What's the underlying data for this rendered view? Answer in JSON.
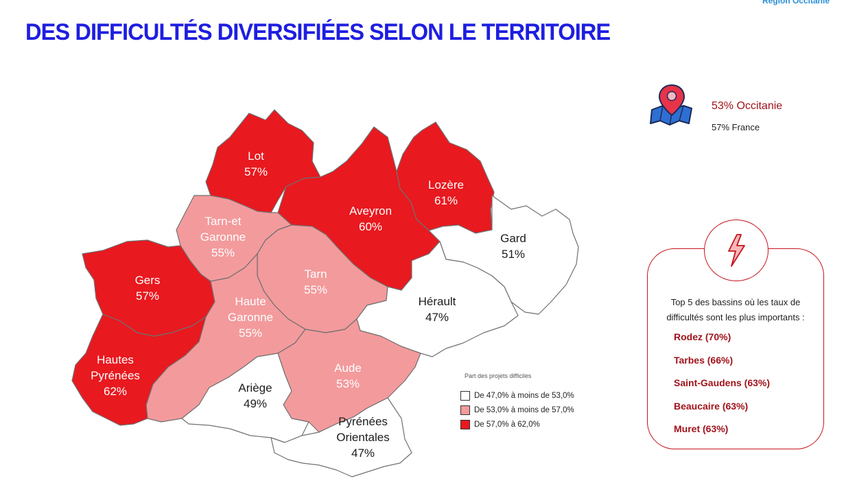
{
  "header": {
    "region_label": "Région Occitanie",
    "title": "DES DIFFICULTÉS DIVERSIFIÉES SELON LE TERRITOIRE"
  },
  "map": {
    "departments": [
      {
        "id": "lot",
        "name_lines": [
          "Lot"
        ],
        "value_label": "57%",
        "value": 57,
        "class": "high"
      },
      {
        "id": "lozere",
        "name_lines": [
          "Lozère"
        ],
        "value_label": "61%",
        "value": 61,
        "class": "high"
      },
      {
        "id": "aveyron",
        "name_lines": [
          "Aveyron"
        ],
        "value_label": "60%",
        "value": 60,
        "class": "high"
      },
      {
        "id": "gard",
        "name_lines": [
          "Gard"
        ],
        "value_label": "51%",
        "value": 51,
        "class": "low"
      },
      {
        "id": "tarn-et-garonne",
        "name_lines": [
          "Tarn-et",
          "Garonne"
        ],
        "value_label": "55%",
        "value": 55,
        "class": "mid"
      },
      {
        "id": "gers",
        "name_lines": [
          "Gers"
        ],
        "value_label": "57%",
        "value": 57,
        "class": "high"
      },
      {
        "id": "tarn",
        "name_lines": [
          "Tarn"
        ],
        "value_label": "55%",
        "value": 55,
        "class": "mid"
      },
      {
        "id": "herault",
        "name_lines": [
          "Hérault"
        ],
        "value_label": "47%",
        "value": 47,
        "class": "low"
      },
      {
        "id": "haute-garonne",
        "name_lines": [
          "Haute",
          "Garonne"
        ],
        "value_label": "55%",
        "value": 55,
        "class": "mid"
      },
      {
        "id": "hautes-pyrenees",
        "name_lines": [
          "Hautes",
          "Pyrénées"
        ],
        "value_label": "62%",
        "value": 62,
        "class": "high"
      },
      {
        "id": "aude",
        "name_lines": [
          "Aude"
        ],
        "value_label": "53%",
        "value": 53,
        "class": "mid"
      },
      {
        "id": "ariege",
        "name_lines": [
          "Ariège"
        ],
        "value_label": "49%",
        "value": 49,
        "class": "low"
      },
      {
        "id": "pyrenees-orientales",
        "name_lines": [
          "Pyrénées",
          "Orientales"
        ],
        "value_label": "47%",
        "value": 47,
        "class": "low"
      }
    ],
    "colors": {
      "high": "#e8191f",
      "mid": "#f39a9c",
      "low": "#ffffff"
    },
    "legend": {
      "title": "Part des projets difficiles",
      "items": [
        {
          "label": "De 47,0% à moins de 53,0%",
          "color": "#ffffff"
        },
        {
          "label": "De 53,0% à moins de 57,0%",
          "color": "#f39a9c"
        },
        {
          "label": "De 57,0% à 62,0%",
          "color": "#e8191f"
        }
      ]
    }
  },
  "stats": {
    "icon": "map-pin-icon",
    "occitanie": "53% Occitanie",
    "france": "57% France"
  },
  "top5": {
    "icon": "lightning-bolt-icon",
    "caption": "Top 5 des bassins où les taux de difficultés sont les plus importants :",
    "items": [
      "Rodez (70%)",
      "Tarbes (66%)",
      "Saint-Gaudens (63%)",
      "Beaucaire (63%)",
      "Muret (63%)"
    ]
  }
}
